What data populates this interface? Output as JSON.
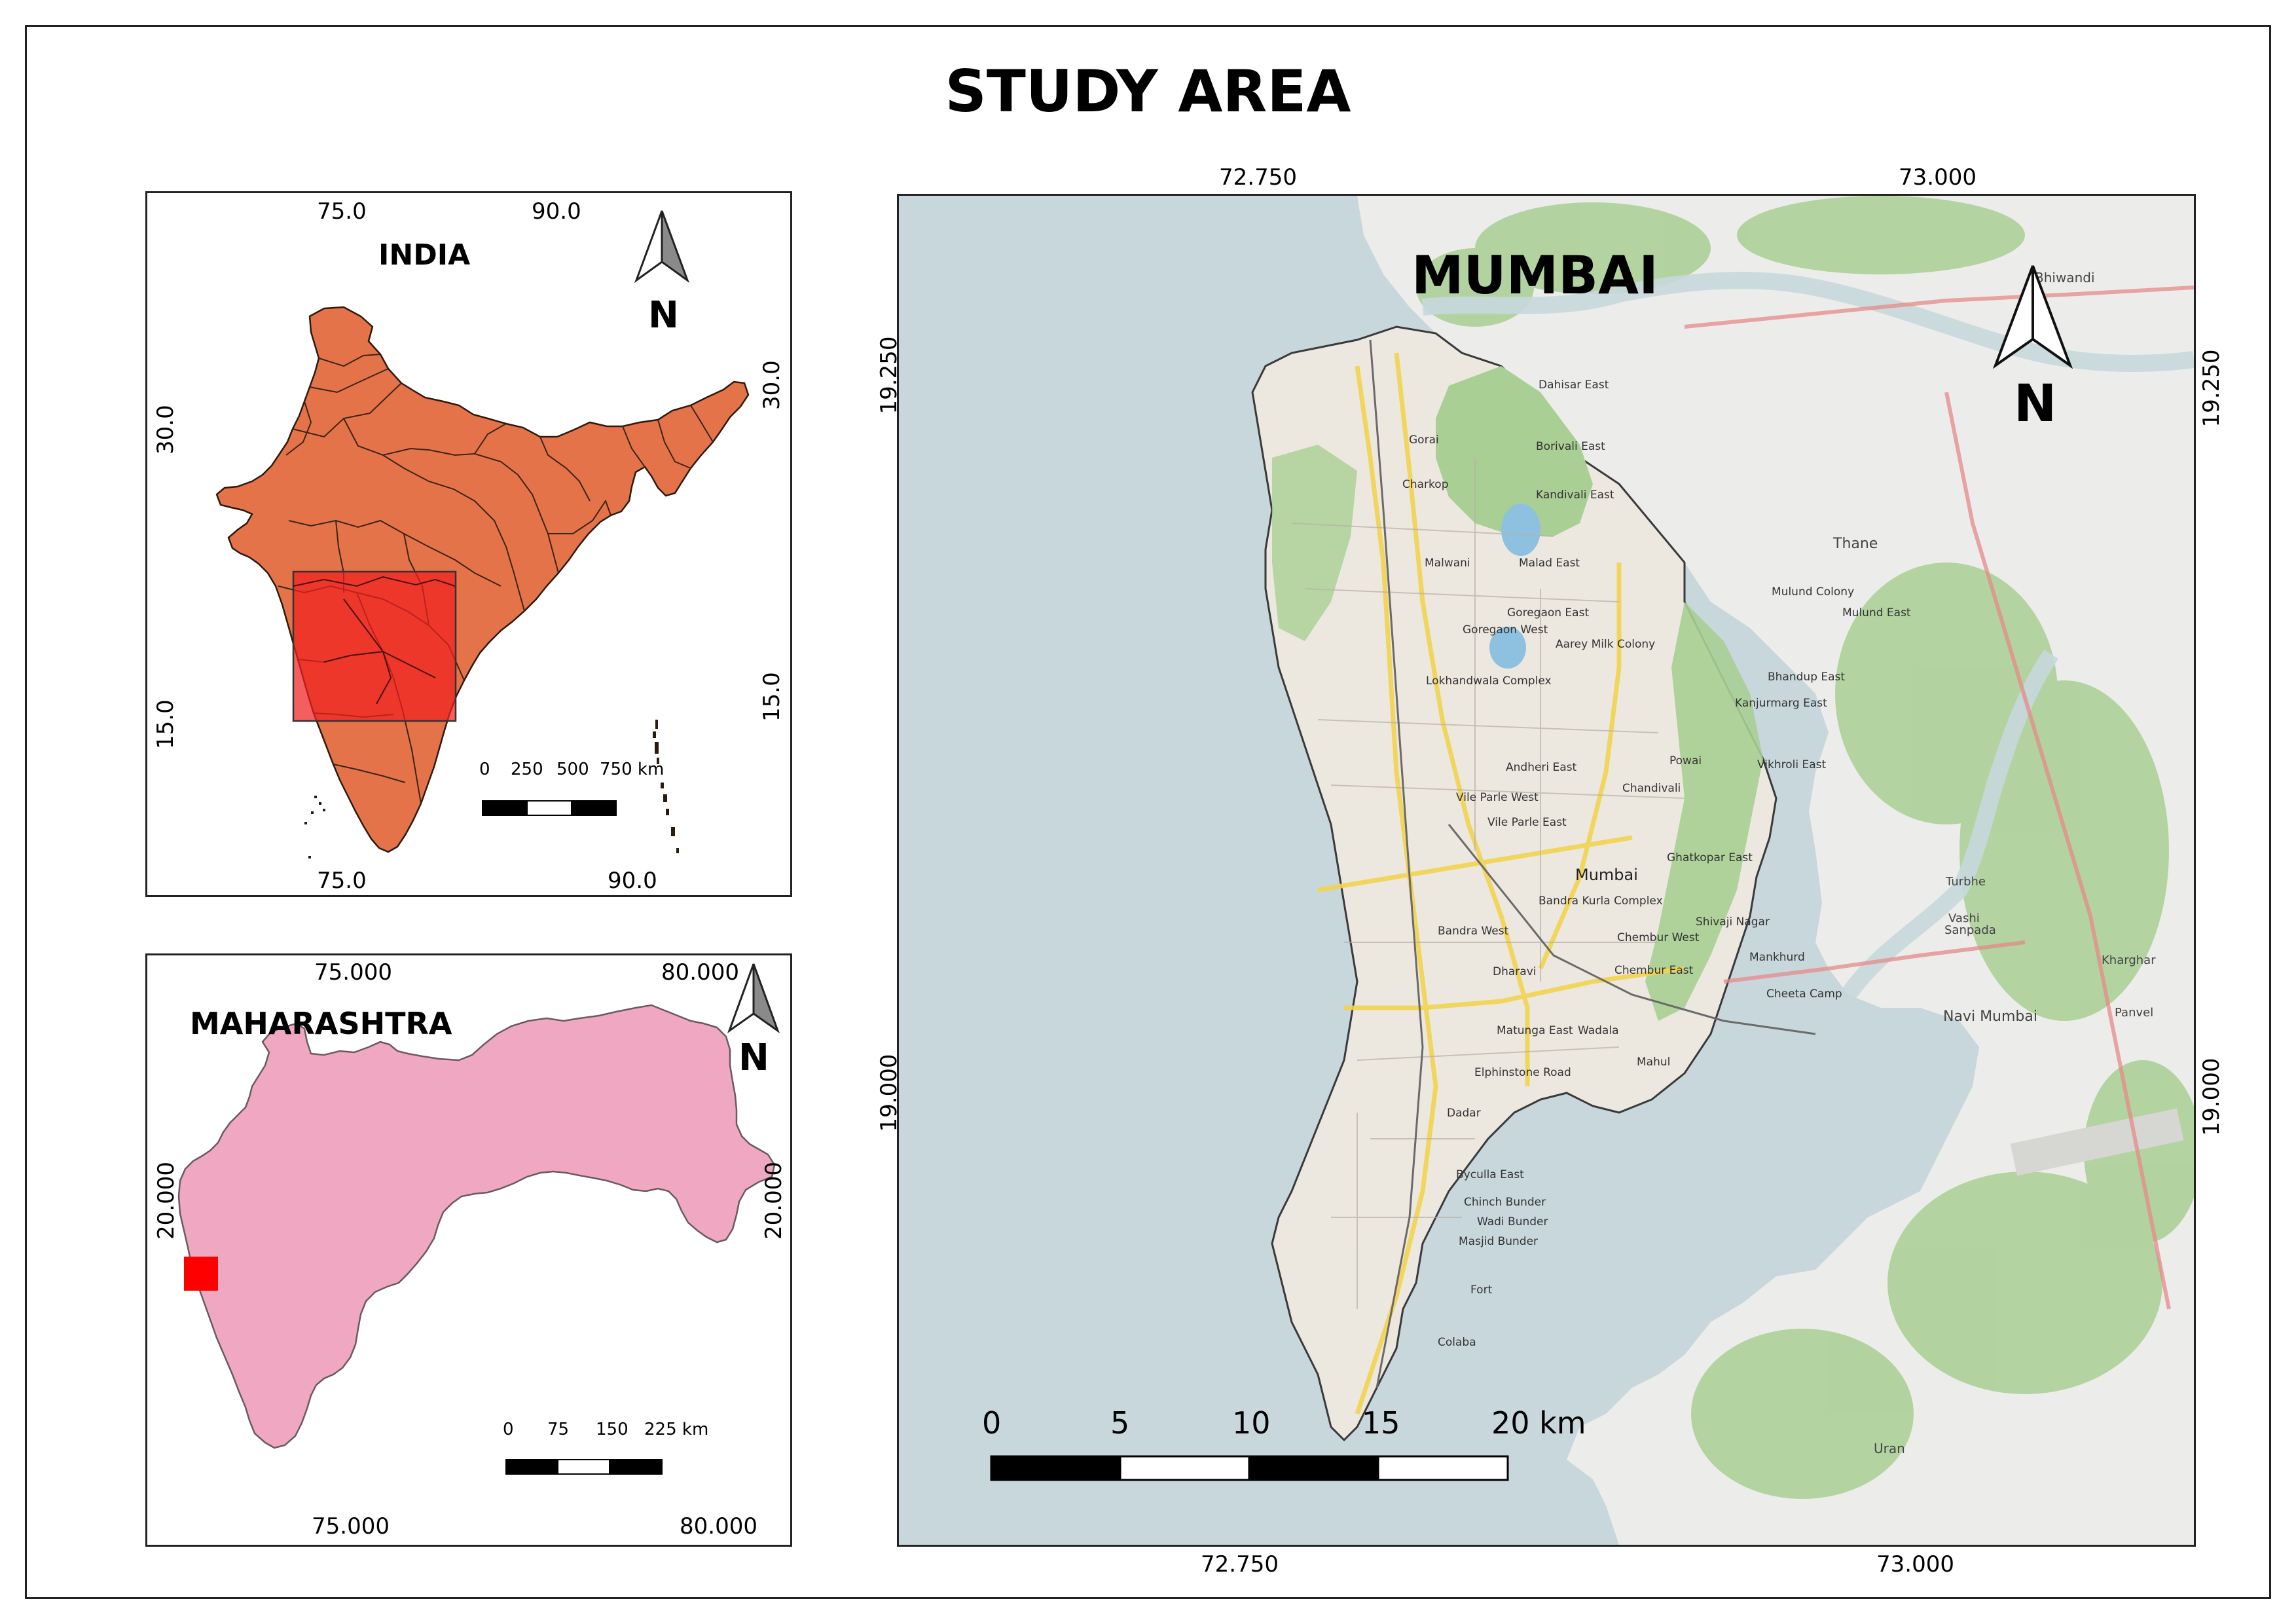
{
  "layout_title": "STUDY AREA",
  "colors": {
    "india_fill": "#e57349",
    "study_box": "#f02020",
    "maharashtra_fill": "#f0a8c2",
    "sea": "#c7d7dc",
    "land": "#eeeeea",
    "green": "#a9cf94",
    "road": "#f2d34e"
  },
  "india_panel": {
    "label": "INDIA",
    "north_label": "N",
    "coords": {
      "top": [
        "75.0",
        "90.0"
      ],
      "bottom": [
        "75.0",
        "90.0"
      ],
      "left": [
        "30.0",
        "15.0"
      ],
      "right": [
        "30.0",
        "15.0"
      ]
    },
    "scalebar": {
      "ticks": [
        "0",
        "250",
        "500",
        "750 km"
      ]
    }
  },
  "maharashtra_panel": {
    "label": "MAHARASHTRA",
    "north_label": "N",
    "coords": {
      "top": [
        "75.000",
        "80.000"
      ],
      "bottom": [
        "75.000",
        "80.000"
      ],
      "left": [
        "20.000"
      ],
      "right": [
        "20.000"
      ]
    },
    "scalebar": {
      "ticks": [
        "0",
        "75",
        "150",
        "225 km"
      ]
    }
  },
  "mumbai_panel": {
    "label": "MUMBAI",
    "north_label": "N",
    "coords": {
      "top": [
        "72.750",
        "73.000"
      ],
      "bottom": [
        "72.750",
        "73.000"
      ],
      "left": [
        "19.250",
        "19.000"
      ],
      "right": [
        "19.250",
        "19.000"
      ]
    },
    "scalebar": {
      "ticks": [
        "0",
        "5",
        "10",
        "15",
        "20 km"
      ]
    },
    "place_labels": [
      "Dahisar East",
      "Borivali East",
      "Kandivali East",
      "Gorai",
      "Charkop",
      "Malad East",
      "Malwani",
      "Goregaon East",
      "Goregaon West",
      "Aarey Milk Colony",
      "Lokhandwala Complex",
      "Andheri East",
      "Vile Parle West",
      "Vile Parle East",
      "Powai",
      "Chandivali",
      "Mulund Colony",
      "Mulund East",
      "Bhandup East",
      "Kanjurmarg East",
      "Vikhroli East",
      "Ghatkopar East",
      "Mumbai",
      "Bandra Kurla Complex",
      "Bandra West",
      "Chembur West",
      "Chembur East",
      "Shivaji Nagar",
      "Mankhurd",
      "Cheeta Camp",
      "Dharavi",
      "Wadala",
      "Matunga East",
      "Mahul",
      "Elphinstone Road",
      "Dadar",
      "Byculla East",
      "Chinch Bunder",
      "Wadi Bunder",
      "Masjid Bunder",
      "Fort",
      "Colaba",
      "Thane",
      "Bhiwandi",
      "Navi Mumbai",
      "Uran",
      "Vashi",
      "Turbhe",
      "Sanpada",
      "Kharghar",
      "Panvel"
    ]
  }
}
